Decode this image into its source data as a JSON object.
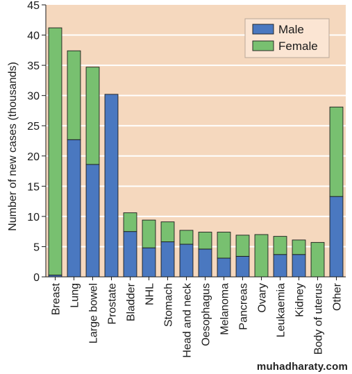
{
  "chart_data": {
    "type": "bar",
    "stacked": true,
    "categories": [
      "Breast",
      "Lung",
      "Large bowel",
      "Prostate",
      "Bladder",
      "NHL",
      "Stomach",
      "Head and neck",
      "Oesophagus",
      "Melanoma",
      "Pancreas",
      "Ovary",
      "Leukaemia",
      "Kidney",
      "Body of uterus",
      "Other"
    ],
    "series": [
      {
        "name": "Male",
        "color": "#4a78c0",
        "values": [
          0.3,
          22.7,
          18.6,
          30.2,
          7.5,
          4.8,
          5.8,
          5.4,
          4.6,
          3.1,
          3.4,
          0,
          3.7,
          3.7,
          0,
          13.3
        ]
      },
      {
        "name": "Female",
        "color": "#78c070",
        "values": [
          40.9,
          14.7,
          16.1,
          0,
          3.1,
          4.6,
          3.3,
          2.3,
          2.8,
          4.3,
          3.5,
          7.0,
          3.0,
          2.4,
          5.7,
          14.8
        ]
      }
    ],
    "xlabel": "",
    "ylabel": "Number of new cases (thousands)",
    "ylim": [
      0,
      45
    ],
    "yticks": [
      0,
      5,
      10,
      15,
      20,
      25,
      30,
      35,
      40,
      45
    ],
    "grid": true,
    "legend": "top-right",
    "background": "#f5d8be"
  },
  "watermark": "muhadharaty.com"
}
